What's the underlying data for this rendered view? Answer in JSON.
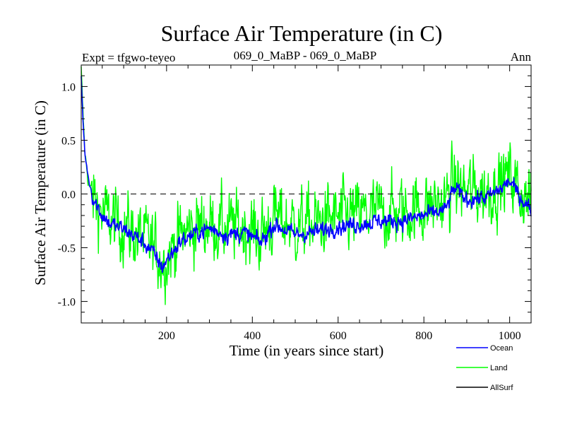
{
  "header": {
    "title": "Surface Air Temperature (in C)",
    "expt": "Expt = tfgwo-teyeo",
    "comparison": "069_0_MaBP - 069_0_MaBP",
    "season": "Ann"
  },
  "chart_data": {
    "type": "line",
    "title": "Surface Air Temperature (in C)",
    "xlabel": "Time (in years since start)",
    "ylabel": "Surface Air Temperature (in C)",
    "xlim": [
      1,
      1050
    ],
    "ylim": [
      -1.2,
      1.2
    ],
    "x_major_ticks": [
      200,
      400,
      600,
      800,
      1000
    ],
    "x_tick_labels": [
      "200",
      "400",
      "600",
      "800",
      "1000"
    ],
    "y_major_ticks": [
      1.0,
      0.5,
      0.0,
      -0.5,
      -1.0
    ],
    "y_tick_labels": [
      "1.0",
      "0.5",
      "0.0",
      "-0.5",
      "-1.0"
    ],
    "reference_line": 0.0,
    "legend_position": "bottom-right",
    "series": [
      {
        "name": "Ocean",
        "color": "#0000ff",
        "x": [
          1,
          5,
          10,
          20,
          30,
          50,
          70,
          100,
          130,
          160,
          190,
          200,
          230,
          260,
          300,
          340,
          380,
          420,
          450,
          500,
          550,
          600,
          650,
          700,
          750,
          800,
          850,
          870,
          900,
          950,
          980,
          1000,
          1020,
          1050
        ],
        "values": [
          1.1,
          0.7,
          0.35,
          0.1,
          -0.05,
          -0.2,
          -0.28,
          -0.33,
          -0.4,
          -0.5,
          -0.68,
          -0.62,
          -0.45,
          -0.38,
          -0.32,
          -0.38,
          -0.36,
          -0.45,
          -0.28,
          -0.38,
          -0.35,
          -0.3,
          -0.28,
          -0.25,
          -0.25,
          -0.2,
          -0.15,
          0.05,
          -0.05,
          -0.03,
          0.05,
          0.12,
          0.0,
          -0.15
        ],
        "noise": 0.07
      },
      {
        "name": "Land",
        "color": "#00ff00",
        "x": [
          1,
          5,
          10,
          20,
          30,
          50,
          70,
          100,
          130,
          160,
          190,
          200,
          230,
          260,
          300,
          340,
          380,
          420,
          450,
          500,
          550,
          600,
          650,
          700,
          750,
          800,
          850,
          870,
          900,
          950,
          980,
          1000,
          1020,
          1050
        ],
        "values": [
          1.15,
          0.75,
          0.35,
          0.08,
          -0.05,
          -0.18,
          -0.25,
          -0.3,
          -0.38,
          -0.46,
          -0.62,
          -0.58,
          -0.4,
          -0.32,
          -0.27,
          -0.32,
          -0.3,
          -0.4,
          -0.22,
          -0.3,
          -0.27,
          -0.22,
          -0.2,
          -0.17,
          -0.17,
          -0.12,
          -0.08,
          0.1,
          0.02,
          0.03,
          0.1,
          0.18,
          0.05,
          -0.1
        ],
        "noise": 0.3
      },
      {
        "name": "AllSurf",
        "color": "#000000",
        "x": [],
        "values": [],
        "noise": 0
      }
    ]
  }
}
